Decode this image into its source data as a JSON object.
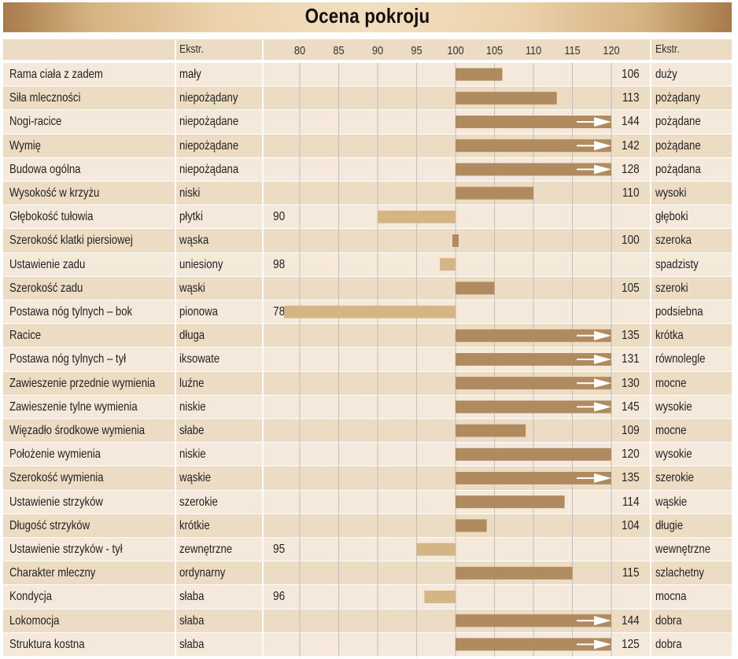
{
  "chart_data": {
    "type": "bar",
    "title": "Ocena pokroju",
    "column_headers": {
      "trait": "",
      "extreme_low": "Ekstr.",
      "extreme_high": "Ekstr."
    },
    "x_ticks": [
      80,
      85,
      90,
      95,
      100,
      105,
      110,
      115,
      120
    ],
    "xlim": [
      80,
      120
    ],
    "baseline": 100,
    "colors": {
      "above": "#b08b5f",
      "below": "#d4b586",
      "row_light": "#f4e9da",
      "row_dark": "#ecdcc4",
      "grid": "#c0c0c0"
    },
    "rows": [
      {
        "trait": "Rama ciała z zadem",
        "low": "mały",
        "high": "duży",
        "value": 106,
        "label": "106"
      },
      {
        "trait": "Siła mleczności",
        "low": "niepożądany",
        "high": "pożądany",
        "value": 113,
        "label": "113"
      },
      {
        "trait": "Nogi-racice",
        "low": "niepożądane",
        "high": "pożądane",
        "value": 144,
        "label": "144"
      },
      {
        "trait": "Wymię",
        "low": "niepożądane",
        "high": "pożądane",
        "value": 142,
        "label": "142"
      },
      {
        "trait": "Budowa ogólna",
        "low": "niepożądana",
        "high": "pożądana",
        "value": 128,
        "label": "128"
      },
      {
        "trait": "Wysokość w krzyżu",
        "low": "niski",
        "high": "wysoki",
        "value": 110,
        "label": "110"
      },
      {
        "trait": "Głębokość tułowia",
        "low": "płytki",
        "high": "głęboki",
        "value": 90,
        "label": "90"
      },
      {
        "trait": "Szerokość klatki piersiowej",
        "low": "wąska",
        "high": "szeroka",
        "value": 100,
        "label": "100"
      },
      {
        "trait": "Ustawienie zadu",
        "low": "uniesiony",
        "high": "spadzisty",
        "value": 98,
        "label": "98"
      },
      {
        "trait": "Szerokość zadu",
        "low": "wąski",
        "high": "szeroki",
        "value": 105,
        "label": "105"
      },
      {
        "trait": "Postawa nóg tylnych – bok",
        "low": "pionowa",
        "high": "podsiebna",
        "value": 78,
        "label": "78"
      },
      {
        "trait": "Racice",
        "low": "długa",
        "high": "krótka",
        "value": 135,
        "label": "135"
      },
      {
        "trait": "Postawa nóg tylnych – tył",
        "low": "iksowate",
        "high": "równolegle",
        "value": 131,
        "label": "131"
      },
      {
        "trait": "Zawieszenie przednie wymienia",
        "low": "luźne",
        "high": "mocne",
        "value": 130,
        "label": "130"
      },
      {
        "trait": "Zawieszenie tylne wymienia",
        "low": "niskie",
        "high": "wysokie",
        "value": 145,
        "label": "145"
      },
      {
        "trait": "Więzadło środkowe wymienia",
        "low": "słabe",
        "high": "mocne",
        "value": 109,
        "label": "109"
      },
      {
        "trait": "Położenie wymienia",
        "low": "niskie",
        "high": "wysokie",
        "value": 120,
        "label": "120"
      },
      {
        "trait": "Szerokość wymienia",
        "low": "wąskie",
        "high": "szerokie",
        "value": 135,
        "label": "135"
      },
      {
        "trait": "Ustawienie strzyków",
        "low": "szerokie",
        "high": "wąskie",
        "value": 114,
        "label": "114"
      },
      {
        "trait": "Długość strzyków",
        "low": "krótkie",
        "high": "długie",
        "value": 104,
        "label": "104"
      },
      {
        "trait": "Ustawienie strzyków - tył",
        "low": "zewnętrzne",
        "high": "wewnętrzne",
        "value": 95,
        "label": "95"
      },
      {
        "trait": "Charakter mleczny",
        "low": "ordynarny",
        "high": "szlachetny",
        "value": 115,
        "label": "115"
      },
      {
        "trait": "Kondycja",
        "low": "słaba",
        "high": "mocna",
        "value": 96,
        "label": "96"
      },
      {
        "trait": "Lokomocja",
        "low": "słaba",
        "high": "dobra",
        "value": 144,
        "label": "144"
      },
      {
        "trait": "Struktura kostna",
        "low": "słaba",
        "high": "dobra",
        "value": 125,
        "label": "125"
      }
    ]
  }
}
